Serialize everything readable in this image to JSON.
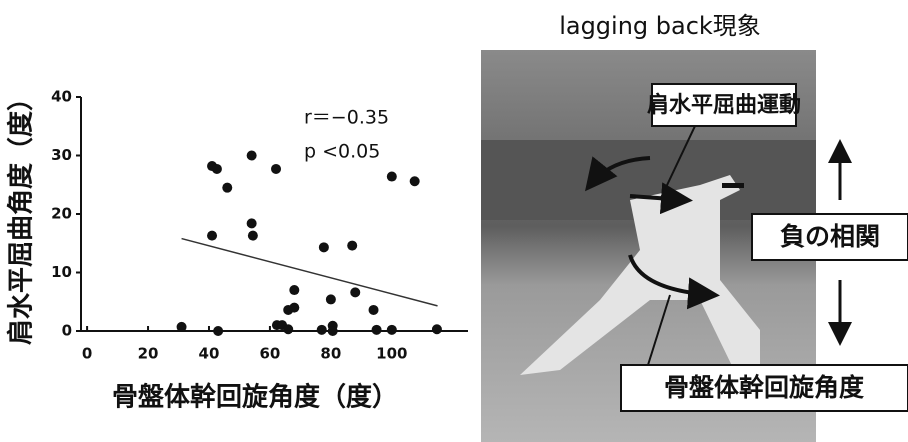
{
  "chart_data": {
    "type": "scatter",
    "x_label": "骨盤体幹回旋角度（度）",
    "y_label": "肩水平屈曲角度（度）",
    "annotations": [
      "r＝−0.35",
      "p <0.05"
    ],
    "x": [
      31,
      41,
      42.6,
      41,
      43,
      46,
      54,
      54,
      54.4,
      62,
      62.3,
      64,
      66,
      66,
      68,
      68,
      77.7,
      77,
      80,
      80.6,
      80.6,
      87,
      88,
      94,
      95,
      100,
      100,
      107.5,
      114.8
    ],
    "y": [
      0.7,
      28.2,
      27.7,
      16.3,
      0,
      24.5,
      30,
      18.4,
      16.3,
      27.7,
      1,
      1,
      0.3,
      3.6,
      7,
      4,
      14.3,
      0.2,
      5.4,
      0.9,
      0,
      14.6,
      6.6,
      3.6,
      0.2,
      26.4,
      0.2,
      25.6,
      0.3
    ],
    "color": "#111111",
    "trendline": {
      "x": [
        31,
        115
      ],
      "y": [
        15.8,
        4.3
      ]
    },
    "xlim": [
      -2,
      125
    ],
    "ylim": [
      0,
      40
    ],
    "xticks": [
      0,
      20,
      40,
      60,
      80,
      100
    ],
    "yticks": [
      0,
      10,
      20,
      30,
      40
    ]
  },
  "photo": {
    "title": "lagging back現象",
    "labels": [
      "肩水平屈曲運動",
      "負の相関",
      "骨盤体幹回旋角度"
    ]
  }
}
